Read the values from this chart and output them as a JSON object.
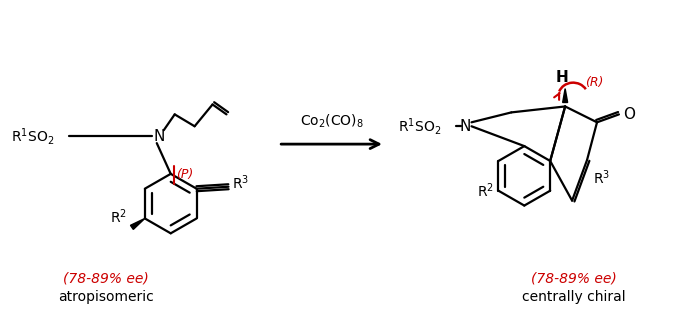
{
  "bg_color": "#ffffff",
  "black": "#000000",
  "red": "#cc0000",
  "label_ee": "(78-89% ee)",
  "label_left_bottom": "atropisomeric",
  "label_right_bottom": "centrally chiral",
  "label_P": "(P)",
  "label_R": "(R)"
}
